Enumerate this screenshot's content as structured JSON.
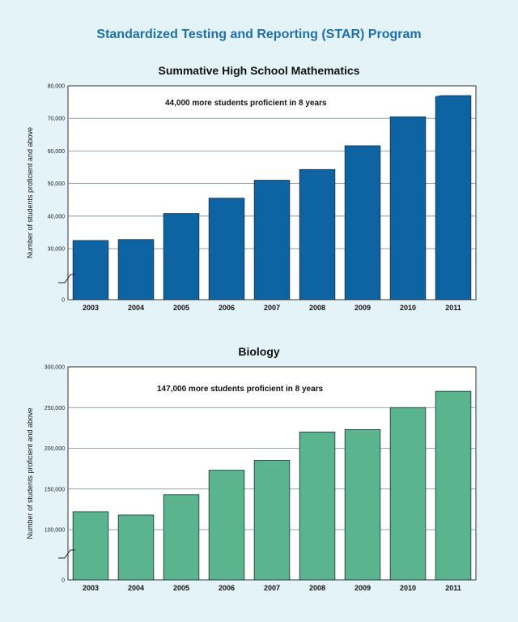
{
  "page": {
    "title": "Standardized Testing and Reporting (STAR) Program",
    "colors": {
      "title": "#1d6fae",
      "background": "#e4f3f8"
    }
  },
  "chart_data": [
    {
      "type": "bar",
      "title": "Summative High School Mathematics",
      "ylabel": "Number of students proficient and above",
      "xlabel": "",
      "categories": [
        "2003",
        "2004",
        "2005",
        "2006",
        "2007",
        "2008",
        "2009",
        "2010",
        "2011"
      ],
      "values": [
        32500,
        32800,
        40800,
        45500,
        51000,
        54300,
        61600,
        70500,
        77000
      ],
      "yticks": [
        0,
        30000,
        40000,
        50000,
        60000,
        70000,
        80000
      ],
      "ytick_labels": [
        "0",
        "30,000",
        "40,000",
        "50,000",
        "60,000",
        "70,000",
        "80,000"
      ],
      "ylim": [
        0,
        80000
      ],
      "axis_break": true,
      "grid": true,
      "bar_color": "#0e63a3",
      "annotation": "44,000 more students proficient in 8 years"
    },
    {
      "type": "bar",
      "title": "Biology",
      "ylabel": "Number of students proficient and above",
      "xlabel": "",
      "categories": [
        "2003",
        "2004",
        "2005",
        "2006",
        "2007",
        "2008",
        "2009",
        "2010",
        "2011"
      ],
      "values": [
        122000,
        118000,
        143000,
        173000,
        185000,
        220000,
        223000,
        250000,
        270000
      ],
      "yticks": [
        0,
        100000,
        150000,
        200000,
        250000,
        300000
      ],
      "ytick_labels": [
        "0",
        "100,000",
        "150,000",
        "200,000",
        "250,000",
        "300,000"
      ],
      "ylim": [
        0,
        300000
      ],
      "axis_break": true,
      "grid": true,
      "bar_color": "#5ab48e",
      "annotation": "147,000 more students proficient in 8 years"
    }
  ]
}
